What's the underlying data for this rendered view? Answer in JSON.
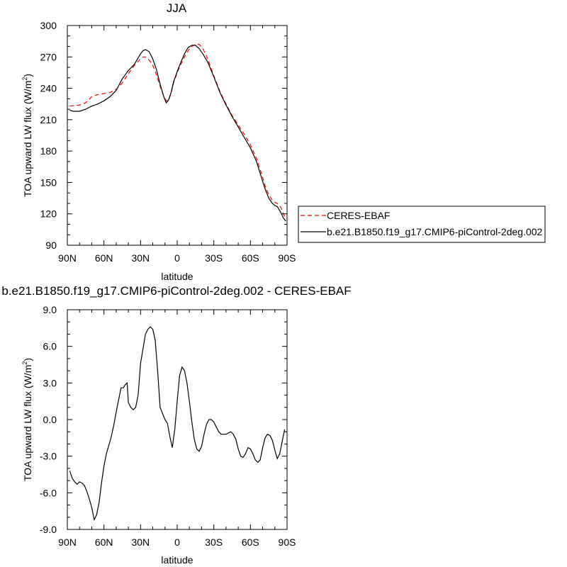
{
  "chart_data": [
    {
      "type": "line",
      "title": "JJA",
      "xlabel": "latitude",
      "ylabel_main": "TOA upward LW flux (W/m",
      "ylabel_sup": "2",
      "ylabel_end": ")",
      "xlim": [
        90,
        -90
      ],
      "ylim": [
        90,
        300
      ],
      "xticks": [
        {
          "v": 90,
          "label": "90N"
        },
        {
          "v": 60,
          "label": "60N"
        },
        {
          "v": 30,
          "label": "30N"
        },
        {
          "v": 0,
          "label": "0"
        },
        {
          "v": -30,
          "label": "30S"
        },
        {
          "v": -60,
          "label": "60S"
        },
        {
          "v": -90,
          "label": "90S"
        }
      ],
      "yticks": [
        {
          "v": 300,
          "label": "300"
        },
        {
          "v": 270,
          "label": "270"
        },
        {
          "v": 240,
          "label": "240"
        },
        {
          "v": 210,
          "label": "210"
        },
        {
          "v": 180,
          "label": "180"
        },
        {
          "v": 150,
          "label": "150"
        },
        {
          "v": 120,
          "label": "120"
        },
        {
          "v": 90,
          "label": "90"
        }
      ],
      "series": [
        {
          "name": "CERES-EBAF",
          "color": "#ff0000",
          "dash": "6,4",
          "x": [
            88,
            80,
            75,
            70,
            65,
            60,
            55,
            50,
            45,
            40,
            35,
            30,
            28,
            26,
            23,
            20,
            17,
            14,
            11,
            9,
            7,
            5,
            3,
            0,
            -3,
            -6,
            -9,
            -12,
            -15,
            -18,
            -21,
            -25,
            -30,
            -35,
            -40,
            -45,
            -50,
            -55,
            -60,
            -65,
            -70,
            -72,
            -75,
            -78,
            -80,
            -82,
            -85,
            -87,
            -89
          ],
          "y": [
            223,
            224,
            226,
            232,
            234,
            235,
            236,
            239,
            245,
            254,
            262,
            268,
            270,
            270,
            267,
            262,
            253,
            242,
            232,
            228,
            229,
            235,
            245,
            255,
            263,
            270,
            276,
            280,
            282,
            282,
            278,
            268,
            252,
            237,
            225,
            214,
            205,
            196,
            186,
            173,
            155,
            147,
            138,
            133,
            131,
            130,
            126,
            120,
            115
          ]
        },
        {
          "name": "b.e21.B1850.f19_g17.CMIP6-piControl-2deg.002",
          "color": "#000000",
          "dash": "",
          "x": [
            88,
            85,
            80,
            75,
            70,
            65,
            60,
            55,
            50,
            45,
            40,
            35,
            30,
            28,
            26,
            23,
            20,
            17,
            14,
            11,
            9,
            7,
            5,
            3,
            0,
            -3,
            -6,
            -9,
            -12,
            -15,
            -18,
            -21,
            -25,
            -30,
            -35,
            -40,
            -45,
            -50,
            -55,
            -60,
            -65,
            -70,
            -72,
            -75,
            -78,
            -80,
            -82,
            -85,
            -87,
            -89
          ],
          "y": [
            219,
            218,
            218,
            220,
            223,
            225,
            228,
            232,
            238,
            249,
            257,
            263,
            273,
            276,
            277,
            275,
            268,
            258,
            244,
            232,
            226,
            229,
            236,
            246,
            256,
            265,
            273,
            279,
            281,
            281,
            278,
            273,
            265,
            251,
            236,
            224,
            213,
            203,
            193,
            183,
            170,
            151,
            144,
            135,
            130,
            128,
            127,
            121,
            116,
            113
          ]
        }
      ],
      "legend": {
        "placement": "right"
      }
    },
    {
      "type": "line",
      "title": "b.e21.B1850.f19_g17.CMIP6-piControl-2deg.002 - CERES-EBAF",
      "xlabel": "latitude",
      "ylabel_main": "TOA upward LW flux (W/m",
      "ylabel_sup": "2",
      "ylabel_end": ")",
      "xlim": [
        90,
        -90
      ],
      "ylim": [
        -9,
        9
      ],
      "xticks": [
        {
          "v": 90,
          "label": "90N"
        },
        {
          "v": 60,
          "label": "60N"
        },
        {
          "v": 30,
          "label": "30N"
        },
        {
          "v": 0,
          "label": "0"
        },
        {
          "v": -30,
          "label": "30S"
        },
        {
          "v": -60,
          "label": "60S"
        },
        {
          "v": -90,
          "label": "90S"
        }
      ],
      "yticks": [
        {
          "v": 9,
          "label": "9.0"
        },
        {
          "v": 6,
          "label": "6.0"
        },
        {
          "v": 3,
          "label": "3.0"
        },
        {
          "v": 0,
          "label": "0.0"
        },
        {
          "v": -3,
          "label": "-3.0"
        },
        {
          "v": -6,
          "label": "-6.0"
        },
        {
          "v": -9,
          "label": "-9.0"
        }
      ],
      "series": [
        {
          "name": "",
          "color": "#000000",
          "dash": "",
          "x": [
            88,
            86,
            84,
            82,
            80,
            78,
            76,
            74,
            72,
            70,
            68,
            66,
            64,
            62,
            60,
            58,
            56,
            54,
            52,
            50,
            48,
            46,
            44,
            43,
            41,
            40,
            38,
            36,
            34,
            32,
            30,
            28,
            26,
            24,
            22,
            20,
            18,
            16,
            14,
            12,
            10,
            8,
            6,
            4,
            2,
            0,
            -2,
            -4,
            -6,
            -8,
            -10,
            -12,
            -14,
            -16,
            -18,
            -20,
            -22,
            -24,
            -26,
            -28,
            -30,
            -32,
            -34,
            -36,
            -38,
            -40,
            -42,
            -44,
            -46,
            -48,
            -50,
            -52,
            -54,
            -56,
            -58,
            -60,
            -62,
            -64,
            -66,
            -68,
            -70,
            -72,
            -74,
            -76,
            -78,
            -80,
            -82,
            -84,
            -86,
            -88
          ],
          "y": [
            -4.2,
            -4.8,
            -5.1,
            -5.3,
            -5.1,
            -5.2,
            -5.4,
            -5.9,
            -6.5,
            -7.2,
            -8.2,
            -7.8,
            -6.8,
            -5.2,
            -3.8,
            -2.8,
            -2.1,
            -1.4,
            -0.5,
            0.6,
            1.6,
            2.6,
            2.6,
            2.8,
            3.0,
            1.4,
            1.0,
            0.8,
            1.0,
            2.0,
            4.6,
            5.8,
            7.0,
            7.4,
            7.6,
            7.4,
            6.5,
            4.0,
            1.0,
            0.5,
            0.0,
            -0.3,
            -1.4,
            -2.3,
            -0.8,
            1.5,
            3.6,
            4.3,
            4.0,
            3.0,
            1.5,
            -0.2,
            -1.6,
            -2.4,
            -2.6,
            -2.2,
            -1.2,
            -0.4,
            0.0,
            0.0,
            -0.2,
            -0.6,
            -1.0,
            -1.2,
            -1.2,
            -1.2,
            -1.1,
            -1.0,
            -1.2,
            -1.6,
            -2.4,
            -3.0,
            -3.1,
            -2.8,
            -2.3,
            -2.4,
            -2.8,
            -3.3,
            -3.5,
            -3.3,
            -2.3,
            -1.5,
            -1.2,
            -1.3,
            -1.7,
            -2.5,
            -3.2,
            -2.8,
            -1.8,
            -0.8
          ]
        }
      ]
    }
  ]
}
